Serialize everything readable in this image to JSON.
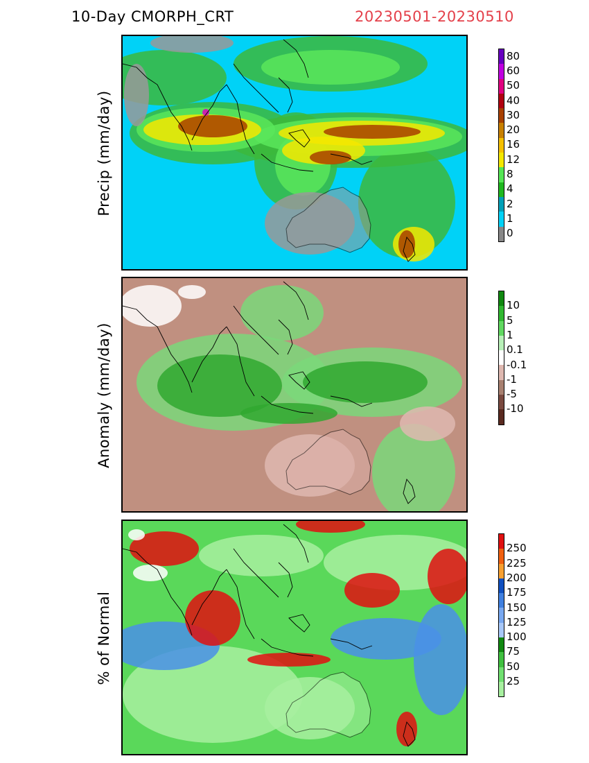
{
  "header": {
    "title": "10-Day CMORPH_CRT",
    "date_range": "20230501-20230510"
  },
  "panels": [
    {
      "id": "precip",
      "ylabel": "Precip (mm/day)",
      "background": "#00d2f7",
      "land": "#999999",
      "colorbar": {
        "colors": [
          "#888888",
          "#00d2f7",
          "#00a0b8",
          "#1fb81f",
          "#55e655",
          "#f4e800",
          "#f5c000",
          "#c88000",
          "#a84000",
          "#b00010",
          "#e00080",
          "#c000e0",
          "#6800c0"
        ],
        "labels": [
          "0",
          "1",
          "2",
          "4",
          "8",
          "12",
          "16",
          "20",
          "30",
          "40",
          "50",
          "60",
          "80"
        ]
      },
      "features": [
        {
          "color": "#3cb83c",
          "blobs": [
            [
              130,
              140,
              120,
              45
            ],
            [
              330,
              150,
              180,
              40
            ],
            [
              250,
              180,
              60,
              70
            ],
            [
              60,
              60,
              90,
              40
            ],
            [
              300,
              40,
              140,
              40
            ],
            [
              410,
              240,
              70,
              80
            ]
          ]
        },
        {
          "color": "#5ae65a",
          "blobs": [
            [
              120,
              135,
              100,
              32
            ],
            [
              340,
              145,
              150,
              28
            ],
            [
              260,
              185,
              40,
              45
            ],
            [
              300,
              45,
              100,
              25
            ]
          ]
        },
        {
          "color": "#f4e800",
          "blobs": [
            [
              115,
              135,
              85,
              22
            ],
            [
              345,
              140,
              120,
              18
            ],
            [
              290,
              165,
              60,
              20
            ],
            [
              420,
              300,
              30,
              25
            ]
          ]
        },
        {
          "color": "#a84000",
          "blobs": [
            [
              130,
              130,
              50,
              16
            ],
            [
              360,
              138,
              70,
              10
            ],
            [
              300,
              175,
              30,
              10
            ],
            [
              410,
              300,
              12,
              20
            ]
          ]
        },
        {
          "color": "#999999",
          "blobs": [
            [
              270,
              270,
              65,
              45
            ],
            [
              20,
              85,
              18,
              45
            ],
            [
              100,
              10,
              60,
              14
            ]
          ]
        },
        {
          "color": "#e000c0",
          "blobs": [
            [
              120,
              110,
              5,
              5
            ]
          ]
        }
      ]
    },
    {
      "id": "anomaly",
      "ylabel": "Anomaly (mm/day)",
      "background": "#c09080",
      "land": "#ddb0a8",
      "colorbar": {
        "colors": [
          "#5a2a20",
          "#7a4a40",
          "#a88070",
          "#deb8b0",
          "#ffffff",
          "#b8f0b8",
          "#60d860",
          "#30b830",
          "#108810"
        ],
        "labels": [
          "-10",
          "-5",
          "-1",
          "-0.1",
          "0.1",
          "1",
          "5",
          "10"
        ]
      },
      "features": [
        {
          "color": "#7ad87a",
          "blobs": [
            [
              160,
              150,
              140,
              70
            ],
            [
              360,
              150,
              130,
              50
            ],
            [
              230,
              50,
              60,
              40
            ],
            [
              420,
              280,
              60,
              70
            ]
          ]
        },
        {
          "color": "#30a830",
          "blobs": [
            [
              140,
              155,
              90,
              45
            ],
            [
              350,
              150,
              90,
              30
            ],
            [
              240,
              195,
              70,
              15
            ]
          ]
        },
        {
          "color": "#deb8b0",
          "blobs": [
            [
              270,
              270,
              65,
              45
            ],
            [
              440,
              210,
              40,
              25
            ]
          ]
        },
        {
          "color": "#ffffff",
          "blobs": [
            [
              40,
              40,
              45,
              30
            ],
            [
              100,
              20,
              20,
              10
            ]
          ]
        }
      ]
    },
    {
      "id": "pct_normal",
      "ylabel": "% of Normal",
      "background": "#5ad85a",
      "land": "#a8f0a0",
      "colorbar": {
        "colors": [
          "#a8f0a0",
          "#70e070",
          "#40c040",
          "#108810",
          "#a8c8f8",
          "#78a8f0",
          "#4080e0",
          "#1050c0",
          "#f8a030",
          "#f06010",
          "#e01010"
        ],
        "labels": [
          "25",
          "50",
          "75",
          "100",
          "125",
          "150",
          "175",
          "200",
          "225",
          "250"
        ]
      },
      "features": [
        {
          "color": "#a8f0a0",
          "blobs": [
            [
              400,
              60,
              110,
              40
            ],
            [
              130,
              250,
              130,
              70
            ],
            [
              270,
              270,
              65,
              45
            ],
            [
              200,
              50,
              90,
              30
            ]
          ]
        },
        {
          "color": "#4a90e8",
          "blobs": [
            [
              60,
              180,
              80,
              35
            ],
            [
              380,
              170,
              80,
              30
            ],
            [
              460,
              200,
              40,
              80
            ]
          ]
        },
        {
          "color": "#e01010",
          "blobs": [
            [
              130,
              140,
              40,
              40
            ],
            [
              360,
              100,
              40,
              25
            ],
            [
              470,
              80,
              30,
              40
            ],
            [
              60,
              40,
              50,
              25
            ],
            [
              300,
              5,
              50,
              12
            ],
            [
              240,
              200,
              60,
              10
            ],
            [
              410,
              300,
              15,
              25
            ]
          ]
        },
        {
          "color": "#ffffff",
          "blobs": [
            [
              40,
              75,
              25,
              12
            ],
            [
              20,
              20,
              12,
              8
            ]
          ]
        }
      ]
    }
  ]
}
